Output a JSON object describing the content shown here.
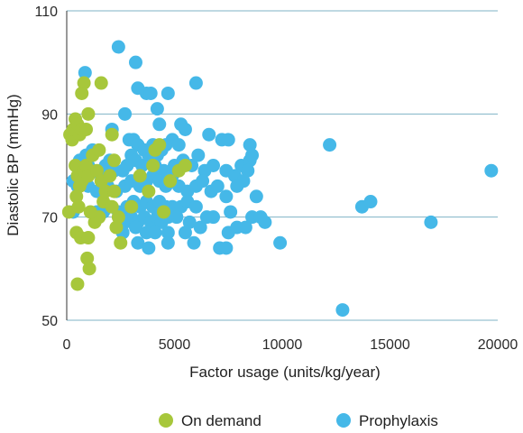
{
  "chart_data": {
    "type": "scatter",
    "title": "",
    "xlabel": "Factor usage (units/kg/year)",
    "ylabel": "Diastolic BP (mmHg)",
    "xlim": [
      0,
      20000
    ],
    "ylim": [
      50,
      110
    ],
    "xticks": [
      0,
      5000,
      10000,
      15000,
      20000
    ],
    "yticks": [
      50,
      70,
      90,
      110
    ],
    "grid": "horizontal",
    "legend": "bottom",
    "series": [
      {
        "name": "On demand",
        "color": "#a7c73b",
        "points": [
          [
            100,
            71
          ],
          [
            150,
            86
          ],
          [
            250,
            85
          ],
          [
            300,
            87
          ],
          [
            400,
            89
          ],
          [
            500,
            88
          ],
          [
            600,
            86
          ],
          [
            700,
            87
          ],
          [
            900,
            87
          ],
          [
            800,
            96
          ],
          [
            700,
            94
          ],
          [
            1000,
            90
          ],
          [
            1600,
            96
          ],
          [
            400,
            80
          ],
          [
            500,
            78
          ],
          [
            600,
            76
          ],
          [
            450,
            74
          ],
          [
            550,
            72
          ],
          [
            700,
            77
          ],
          [
            800,
            79
          ],
          [
            900,
            80
          ],
          [
            1000,
            78
          ],
          [
            1200,
            82
          ],
          [
            1400,
            79
          ],
          [
            1500,
            83
          ],
          [
            1300,
            69
          ],
          [
            1500,
            70
          ],
          [
            1100,
            71
          ],
          [
            1700,
            73
          ],
          [
            1800,
            75
          ],
          [
            1600,
            77
          ],
          [
            450,
            67
          ],
          [
            650,
            66
          ],
          [
            1000,
            66
          ],
          [
            950,
            62
          ],
          [
            1050,
            60
          ],
          [
            500,
            57
          ],
          [
            2100,
            86
          ],
          [
            2200,
            81
          ],
          [
            2000,
            78
          ],
          [
            2100,
            72
          ],
          [
            2300,
            68
          ],
          [
            2500,
            65
          ],
          [
            2400,
            70
          ],
          [
            2200,
            75
          ],
          [
            4100,
            83
          ],
          [
            4300,
            84
          ],
          [
            4000,
            80
          ],
          [
            4800,
            77
          ],
          [
            5200,
            79
          ],
          [
            5500,
            80
          ],
          [
            4500,
            71
          ],
          [
            3800,
            75
          ],
          [
            3000,
            72
          ],
          [
            3400,
            78
          ]
        ]
      },
      {
        "name": "Prophylaxis",
        "color": "#45b8e8",
        "points": [
          [
            2400,
            103
          ],
          [
            3200,
            100
          ],
          [
            850,
            98
          ],
          [
            6000,
            96
          ],
          [
            3300,
            95
          ],
          [
            3700,
            94
          ],
          [
            4700,
            94
          ],
          [
            3900,
            94
          ],
          [
            4200,
            91
          ],
          [
            2700,
            90
          ],
          [
            5300,
            88
          ],
          [
            5500,
            87
          ],
          [
            4300,
            88
          ],
          [
            2100,
            87
          ],
          [
            6600,
            86
          ],
          [
            7200,
            85
          ],
          [
            7500,
            85
          ],
          [
            8500,
            84
          ],
          [
            12200,
            84
          ],
          [
            2900,
            85
          ],
          [
            3100,
            85
          ],
          [
            3300,
            84
          ],
          [
            3600,
            83
          ],
          [
            3800,
            82
          ],
          [
            4000,
            84
          ],
          [
            4200,
            82
          ],
          [
            4400,
            83
          ],
          [
            4600,
            84
          ],
          [
            4900,
            85
          ],
          [
            5200,
            84
          ],
          [
            3000,
            82
          ],
          [
            3200,
            81
          ],
          [
            2800,
            80
          ],
          [
            3500,
            80
          ],
          [
            4100,
            80
          ],
          [
            4500,
            79
          ],
          [
            5000,
            80
          ],
          [
            5400,
            81
          ],
          [
            5800,
            80
          ],
          [
            6100,
            82
          ],
          [
            6400,
            79
          ],
          [
            6800,
            80
          ],
          [
            7400,
            79
          ],
          [
            7800,
            78
          ],
          [
            8100,
            80
          ],
          [
            8500,
            81
          ],
          [
            8600,
            82
          ],
          [
            8400,
            79
          ],
          [
            8200,
            77
          ],
          [
            7900,
            76
          ],
          [
            600,
            81
          ],
          [
            900,
            82
          ],
          [
            1200,
            83
          ],
          [
            1000,
            80
          ],
          [
            1200,
            79
          ],
          [
            1600,
            78
          ],
          [
            1800,
            80
          ],
          [
            2000,
            81
          ],
          [
            2200,
            79
          ],
          [
            2600,
            79
          ],
          [
            300,
            77
          ],
          [
            500,
            76
          ],
          [
            1000,
            76
          ],
          [
            1400,
            75
          ],
          [
            1900,
            76
          ],
          [
            2300,
            75
          ],
          [
            2700,
            76
          ],
          [
            3000,
            77
          ],
          [
            3400,
            76
          ],
          [
            3700,
            77
          ],
          [
            4000,
            78
          ],
          [
            4300,
            77
          ],
          [
            4600,
            76
          ],
          [
            4900,
            78
          ],
          [
            5200,
            76
          ],
          [
            5600,
            75
          ],
          [
            6000,
            76
          ],
          [
            6300,
            77
          ],
          [
            6700,
            75
          ],
          [
            7000,
            76
          ],
          [
            7400,
            74
          ],
          [
            8800,
            74
          ],
          [
            13700,
            72
          ],
          [
            14100,
            73
          ],
          [
            19700,
            79
          ],
          [
            1400,
            71
          ],
          [
            1700,
            71
          ],
          [
            2000,
            72
          ],
          [
            2400,
            71
          ],
          [
            2800,
            72
          ],
          [
            3100,
            73
          ],
          [
            3400,
            72
          ],
          [
            3700,
            73
          ],
          [
            4000,
            72
          ],
          [
            4300,
            73
          ],
          [
            4600,
            72
          ],
          [
            4900,
            72
          ],
          [
            5300,
            72
          ],
          [
            5600,
            73
          ],
          [
            6000,
            72
          ],
          [
            6500,
            70
          ],
          [
            6800,
            70
          ],
          [
            7600,
            71
          ],
          [
            8600,
            70
          ],
          [
            9000,
            70
          ],
          [
            9200,
            69
          ],
          [
            16900,
            69
          ],
          [
            300,
            71
          ],
          [
            2500,
            70
          ],
          [
            2700,
            69
          ],
          [
            3000,
            70
          ],
          [
            3300,
            69
          ],
          [
            3600,
            70
          ],
          [
            3900,
            69
          ],
          [
            4200,
            70
          ],
          [
            4400,
            69
          ],
          [
            4700,
            70
          ],
          [
            5100,
            70
          ],
          [
            5700,
            69
          ],
          [
            6200,
            68
          ],
          [
            2600,
            67
          ],
          [
            3200,
            68
          ],
          [
            3700,
            67
          ],
          [
            4100,
            67
          ],
          [
            4700,
            67
          ],
          [
            5500,
            67
          ],
          [
            7500,
            67
          ],
          [
            7900,
            68
          ],
          [
            8300,
            68
          ],
          [
            3300,
            65
          ],
          [
            3800,
            64
          ],
          [
            4700,
            65
          ],
          [
            5900,
            65
          ],
          [
            7100,
            64
          ],
          [
            7400,
            64
          ],
          [
            9900,
            65
          ],
          [
            12800,
            52
          ]
        ]
      }
    ]
  }
}
